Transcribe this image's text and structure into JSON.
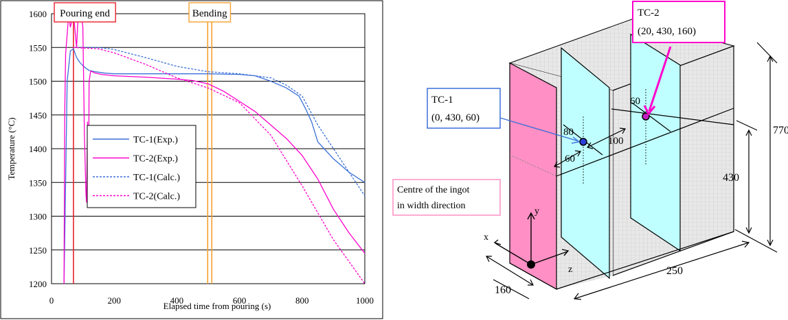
{
  "chart_data": {
    "type": "line",
    "title": "",
    "xlabel": "Elapsed time from pouring (s)",
    "ylabel": "Temperature (°C)",
    "xlim": [
      0,
      1000
    ],
    "ylim": [
      1200,
      1600
    ],
    "x_ticks": [
      "0",
      "200",
      "400",
      "600",
      "800",
      "1000"
    ],
    "y_ticks": [
      "1200",
      "1250",
      "1300",
      "1350",
      "1400",
      "1450",
      "1500",
      "1550",
      "1600"
    ],
    "grid": "horizontal",
    "legend_position": "center-left",
    "annotations": [
      {
        "label": "Pouring end",
        "x": 70,
        "color": "#e8202a"
      },
      {
        "label": "Bending",
        "x": 505,
        "color": "#f5a030"
      }
    ],
    "series": [
      {
        "name": "TC-1(Exp.)",
        "color": "#3a6fd8",
        "style": "solid",
        "x": [
          40,
          50,
          60,
          70,
          80,
          90,
          100,
          110,
          120,
          140,
          170,
          200,
          300,
          400,
          500,
          600,
          650,
          700,
          750,
          790,
          810,
          830,
          850,
          870,
          900,
          950,
          1000
        ],
        "y": [
          1200,
          1500,
          1545,
          1548,
          1535,
          1528,
          1523,
          1519,
          1516,
          1514,
          1512,
          1511,
          1511,
          1511,
          1511,
          1510,
          1508,
          1500,
          1490,
          1478,
          1460,
          1440,
          1410,
          1400,
          1385,
          1365,
          1350
        ]
      },
      {
        "name": "TC-2(Exp.)",
        "color": "#ff00cc",
        "style": "solid",
        "x": [
          40,
          42,
          45,
          50,
          55,
          60,
          70,
          80,
          85,
          90,
          95,
          100,
          105,
          110,
          112,
          115,
          118,
          120,
          125,
          130,
          140,
          160,
          200,
          300,
          400,
          450,
          500,
          550,
          600,
          650,
          700,
          750,
          800,
          850,
          900,
          950,
          1000
        ],
        "y": [
          1200,
          1450,
          1540,
          1570,
          1600,
          1580,
          1600,
          1550,
          1600,
          1590,
          1600,
          1580,
          1420,
          1330,
          1320,
          1440,
          1320,
          1500,
          1515,
          1514,
          1512,
          1510,
          1508,
          1506,
          1503,
          1501,
          1496,
          1485,
          1470,
          1455,
          1435,
          1415,
          1390,
          1355,
          1310,
          1275,
          1245
        ]
      },
      {
        "name": "TC-1(Calc.)",
        "color": "#3a6fd8",
        "style": "dotted",
        "x": [
          70,
          150,
          200,
          300,
          400,
          500,
          600,
          700,
          750,
          800,
          850,
          900,
          950,
          1000
        ],
        "y": [
          1550,
          1550,
          1547,
          1535,
          1522,
          1514,
          1511,
          1505,
          1494,
          1478,
          1435,
          1400,
          1365,
          1330
        ]
      },
      {
        "name": "TC-2(Calc.)",
        "color": "#ff00cc",
        "style": "dotted",
        "x": [
          70,
          150,
          200,
          300,
          400,
          500,
          600,
          700,
          800,
          900,
          1000
        ],
        "y": [
          1550,
          1548,
          1542,
          1525,
          1505,
          1490,
          1468,
          1420,
          1345,
          1265,
          1200
        ]
      }
    ]
  },
  "diagram": {
    "tc1_callout": [
      "TC-1",
      "(0, 430, 60)"
    ],
    "tc2_callout": [
      "TC-2",
      "(20, 430, 160)"
    ],
    "centre_callout": [
      "Centre of the ingot",
      "in width direction"
    ],
    "dimensions": {
      "height_total": "770",
      "height_tc": "430",
      "width": "250",
      "depth": "160",
      "tc1_depth": "60",
      "tc1_width": "80",
      "tc_spacing": "100",
      "tc2_width": "60"
    },
    "axes": {
      "x": "x",
      "y": "y",
      "z": "z"
    },
    "colors": {
      "pink_face": "#ff8fc4",
      "cyan_plane": "#c0ffff",
      "grid_face": "#e6e6e6",
      "tc1_callout": "#3a6fd8",
      "tc2_callout": "#ff00cc",
      "centre_callout": "#ff8fc4"
    }
  }
}
